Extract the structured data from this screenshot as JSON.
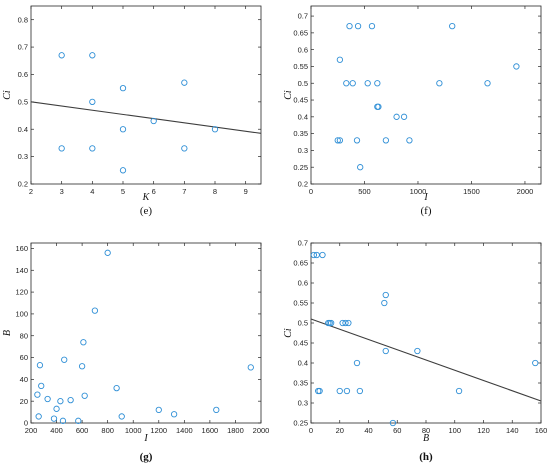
{
  "chart_data": [
    {
      "id": "e",
      "type": "scatter",
      "caption": "(e)",
      "caption_bold": false,
      "xlabel": "K",
      "ylabel": "Ci",
      "xlim": [
        2,
        9.5
      ],
      "ylim": [
        0.2,
        0.85
      ],
      "xticks": [
        2,
        3,
        4,
        5,
        6,
        7,
        8,
        9
      ],
      "yticks": [
        0.2,
        0.3,
        0.4,
        0.5,
        0.6,
        0.7,
        0.8
      ],
      "grid": false,
      "marker_color": "#2f8fd6",
      "points": [
        [
          3,
          0.67
        ],
        [
          3,
          0.33
        ],
        [
          4,
          0.67
        ],
        [
          4,
          0.5
        ],
        [
          4,
          0.33
        ],
        [
          5,
          0.55
        ],
        [
          5,
          0.4
        ],
        [
          5,
          0.25
        ],
        [
          6,
          0.43
        ],
        [
          7,
          0.57
        ],
        [
          7,
          0.33
        ],
        [
          8,
          0.4
        ]
      ],
      "trendline": [
        [
          2,
          0.5
        ],
        [
          9.5,
          0.385
        ]
      ]
    },
    {
      "id": "f",
      "type": "scatter",
      "caption": "(f)",
      "caption_bold": false,
      "xlabel": "I",
      "ylabel": "Ci",
      "xlim": [
        0,
        2150
      ],
      "ylim": [
        0.2,
        0.73
      ],
      "xticks": [
        0,
        500,
        1000,
        1500,
        2000
      ],
      "yticks": [
        0.2,
        0.25,
        0.3,
        0.35,
        0.4,
        0.45,
        0.5,
        0.55,
        0.6,
        0.65,
        0.7
      ],
      "grid": false,
      "marker_color": "#2f8fd6",
      "points": [
        [
          250,
          0.33
        ],
        [
          270,
          0.33
        ],
        [
          270,
          0.57
        ],
        [
          330,
          0.5
        ],
        [
          360,
          0.67
        ],
        [
          390,
          0.5
        ],
        [
          430,
          0.33
        ],
        [
          440,
          0.67
        ],
        [
          460,
          0.25
        ],
        [
          530,
          0.5
        ],
        [
          570,
          0.67
        ],
        [
          620,
          0.5
        ],
        [
          620,
          0.43
        ],
        [
          630,
          0.43
        ],
        [
          700,
          0.33
        ],
        [
          800,
          0.4
        ],
        [
          870,
          0.4
        ],
        [
          920,
          0.33
        ],
        [
          1200,
          0.5
        ],
        [
          1320,
          0.67
        ],
        [
          1650,
          0.5
        ],
        [
          1920,
          0.55
        ]
      ],
      "trendline": null
    },
    {
      "id": "g",
      "type": "scatter",
      "caption": "(g)",
      "caption_bold": true,
      "xlabel": "I",
      "ylabel": "B",
      "xlim": [
        200,
        2000
      ],
      "ylim": [
        0,
        165
      ],
      "xticks": [
        200,
        400,
        600,
        800,
        1000,
        1200,
        1400,
        1600,
        1800,
        2000
      ],
      "yticks": [
        0,
        20,
        40,
        60,
        80,
        100,
        120,
        140,
        160
      ],
      "grid": false,
      "marker_color": "#2f8fd6",
      "points": [
        [
          250,
          26
        ],
        [
          260,
          6
        ],
        [
          270,
          53
        ],
        [
          280,
          34
        ],
        [
          330,
          22
        ],
        [
          380,
          4
        ],
        [
          400,
          13
        ],
        [
          430,
          20
        ],
        [
          450,
          2
        ],
        [
          460,
          58
        ],
        [
          510,
          21
        ],
        [
          570,
          2
        ],
        [
          600,
          52
        ],
        [
          610,
          74
        ],
        [
          620,
          25
        ],
        [
          700,
          103
        ],
        [
          800,
          156
        ],
        [
          870,
          32
        ],
        [
          910,
          6
        ],
        [
          1200,
          12
        ],
        [
          1320,
          8
        ],
        [
          1650,
          12
        ],
        [
          1920,
          51
        ]
      ],
      "trendline": null
    },
    {
      "id": "h",
      "type": "scatter",
      "caption": "(h)",
      "caption_bold": true,
      "xlabel": "B",
      "ylabel": "Ci",
      "xlim": [
        0,
        160
      ],
      "ylim": [
        0.25,
        0.7
      ],
      "xticks": [
        0,
        20,
        40,
        60,
        80,
        100,
        120,
        140,
        160
      ],
      "yticks": [
        0.25,
        0.3,
        0.35,
        0.4,
        0.45,
        0.5,
        0.55,
        0.6,
        0.65,
        0.7
      ],
      "grid": false,
      "marker_color": "#2f8fd6",
      "points": [
        [
          2,
          0.67
        ],
        [
          4,
          0.67
        ],
        [
          5,
          0.33
        ],
        [
          6,
          0.33
        ],
        [
          8,
          0.67
        ],
        [
          12,
          0.5
        ],
        [
          13,
          0.5
        ],
        [
          14,
          0.5
        ],
        [
          20,
          0.33
        ],
        [
          22,
          0.5
        ],
        [
          24,
          0.5
        ],
        [
          26,
          0.5
        ],
        [
          25,
          0.33
        ],
        [
          32,
          0.4
        ],
        [
          34,
          0.33
        ],
        [
          51,
          0.55
        ],
        [
          52,
          0.57
        ],
        [
          52,
          0.43
        ],
        [
          57,
          0.25
        ],
        [
          74,
          0.43
        ],
        [
          103,
          0.33
        ],
        [
          156,
          0.4
        ]
      ],
      "trendline": [
        [
          0,
          0.51
        ],
        [
          160,
          0.305
        ]
      ]
    }
  ]
}
